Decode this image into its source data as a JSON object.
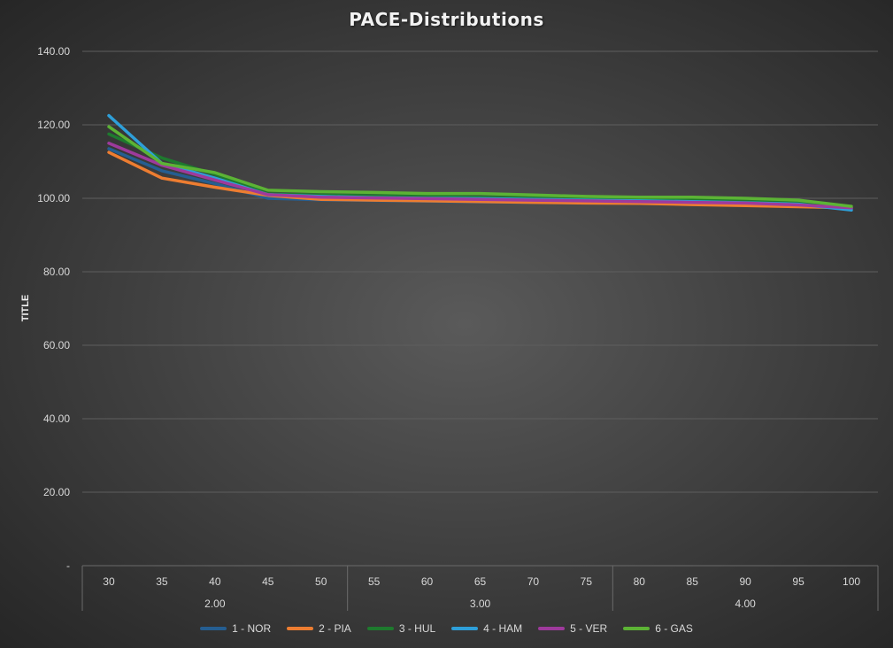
{
  "chart_data": {
    "type": "line",
    "title": "PACE-Distributions",
    "ylabel": "TITLE",
    "xlabel": "",
    "ylim": [
      0,
      140
    ],
    "y_ticks": [
      "-",
      "20.00",
      "40.00",
      "60.00",
      "80.00",
      "100.00",
      "120.00",
      "140.00"
    ],
    "categories": [
      "30",
      "35",
      "40",
      "45",
      "50",
      "55",
      "60",
      "65",
      "70",
      "75",
      "80",
      "85",
      "90",
      "95",
      "100"
    ],
    "category_groups": [
      {
        "label": "2.00",
        "categories": [
          "30",
          "35",
          "40",
          "45",
          "50"
        ]
      },
      {
        "label": "3.00",
        "categories": [
          "55",
          "60",
          "65",
          "70",
          "75"
        ]
      },
      {
        "label": "4.00",
        "categories": [
          "80",
          "85",
          "90",
          "95",
          "100"
        ]
      }
    ],
    "grid": true,
    "legend_position": "bottom",
    "series": [
      {
        "name": "1 - NOR",
        "color": "#255e91",
        "values": [
          113.5,
          107.5,
          104.0,
          100.0,
          99.6,
          99.4,
          99.2,
          99.0,
          98.9,
          98.8,
          98.7,
          98.6,
          98.4,
          98.1,
          97.3
        ]
      },
      {
        "name": "2 - PIA",
        "color": "#ed7d31",
        "values": [
          112.5,
          105.5,
          103.0,
          100.8,
          99.7,
          99.5,
          99.3,
          99.1,
          98.9,
          98.7,
          98.6,
          98.3,
          98.0,
          97.7,
          97.4
        ]
      },
      {
        "name": "3 - HUL",
        "color": "#1e7a2e",
        "values": [
          117.5,
          111.0,
          106.5,
          101.2,
          100.9,
          100.7,
          100.5,
          100.3,
          100.1,
          99.9,
          99.8,
          99.7,
          99.5,
          99.2,
          97.6
        ]
      },
      {
        "name": "4 - HAM",
        "color": "#2e9fd9",
        "values": [
          122.5,
          109.5,
          105.5,
          101.0,
          100.5,
          100.2,
          100.0,
          99.9,
          99.7,
          99.5,
          99.3,
          99.1,
          98.8,
          98.4,
          96.8
        ]
      },
      {
        "name": "5 - VER",
        "color": "#9e3a9c",
        "values": [
          115.0,
          109.0,
          105.0,
          101.0,
          100.3,
          100.1,
          99.9,
          99.7,
          99.5,
          99.3,
          99.1,
          98.9,
          98.7,
          98.2,
          97.4
        ]
      },
      {
        "name": "6 - GAS",
        "color": "#5cb335",
        "values": [
          119.5,
          109.5,
          107.0,
          102.2,
          101.8,
          101.6,
          101.3,
          101.3,
          100.9,
          100.5,
          100.3,
          100.3,
          100.0,
          99.5,
          97.8
        ]
      }
    ]
  }
}
